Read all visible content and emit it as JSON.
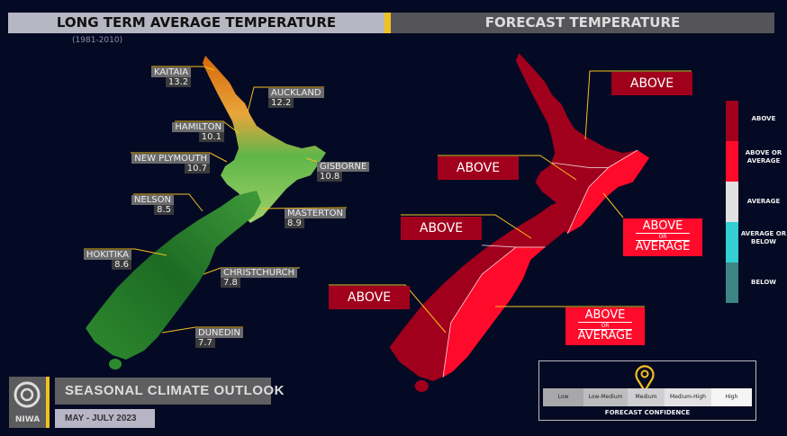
{
  "left_title": "LONG TERM AVERAGE TEMPERATURE",
  "left_subtitle": "(1981-2010)",
  "right_title": "FORECAST TEMPERATURE",
  "cities": [
    {
      "name": "KAITAIA",
      "value": "13.2"
    },
    {
      "name": "AUCKLAND",
      "value": "12.2"
    },
    {
      "name": "HAMILTON",
      "value": "10.1"
    },
    {
      "name": "NEW PLYMOUTH",
      "value": "10.7"
    },
    {
      "name": "GISBORNE",
      "value": "10.8"
    },
    {
      "name": "NELSON",
      "value": "8.5"
    },
    {
      "name": "MASTERTON",
      "value": "8.9"
    },
    {
      "name": "HOKITIKA",
      "value": "8.6"
    },
    {
      "name": "CHRISTCHURCH",
      "value": "7.8"
    },
    {
      "name": "DUNEDIN",
      "value": "7.7"
    }
  ],
  "forecast_regions": [
    {
      "label": "ABOVE",
      "category": "above"
    },
    {
      "label": "ABOVE",
      "category": "above"
    },
    {
      "label": "ABOVE",
      "category": "above"
    },
    {
      "label": "ABOVE",
      "category": "above"
    },
    {
      "label_top": "ABOVE",
      "label_or": "OR",
      "label_bottom": "AVERAGE",
      "category": "above_or_average"
    },
    {
      "label_top": "ABOVE",
      "label_or": "OR",
      "label_bottom": "AVERAGE",
      "category": "above_or_average"
    }
  ],
  "legend": [
    {
      "label": "ABOVE",
      "color": "#a0001c"
    },
    {
      "label": "ABOVE OR AVERAGE",
      "color": "#ff0a2a"
    },
    {
      "label": "AVERAGE",
      "color": "#e0e0e0"
    },
    {
      "label": "AVERAGE OR BELOW",
      "color": "#33cfd2"
    },
    {
      "label": "BELOW",
      "color": "#3d8585"
    }
  ],
  "confidence": {
    "title": "FORECAST CONFIDENCE",
    "levels": [
      "Low",
      "Low-Medium",
      "Medium",
      "Medium-High",
      "High"
    ],
    "selected": "Medium",
    "marker_icon": "map-pin-icon"
  },
  "footer": {
    "logo_text": "NIWA",
    "title": "SEASONAL CLIMATE OUTLOOK",
    "period": "MAY - JULY 2023"
  },
  "colors": {
    "accent": "#f4c01d",
    "above": "#a0001c",
    "above_or_average": "#ff0a2a"
  }
}
